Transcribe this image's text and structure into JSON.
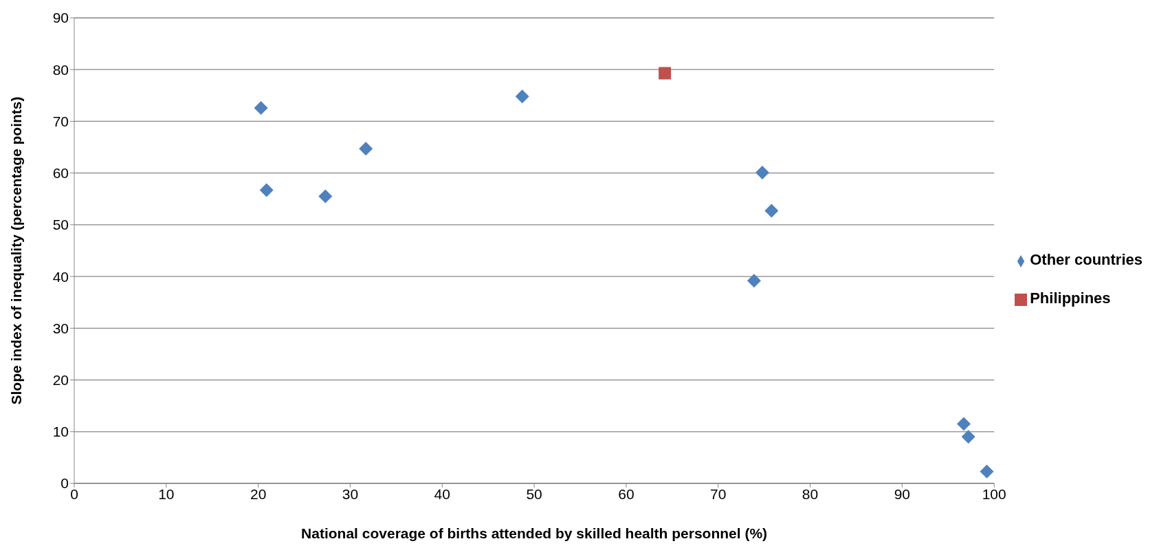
{
  "chart_data": {
    "type": "scatter",
    "xlabel": "National coverage of births attended by skilled health personnel (%)",
    "ylabel": "Slope index of  inequality (percentage points)",
    "xlim": [
      0,
      100
    ],
    "xticks": [
      0,
      10,
      20,
      30,
      40,
      50,
      60,
      70,
      80,
      90,
      100
    ],
    "ylim": [
      0,
      90
    ],
    "yticks": [
      0,
      10,
      20,
      30,
      40,
      50,
      60,
      70,
      80,
      90
    ],
    "grid": "y",
    "legend": "right",
    "series": [
      {
        "name": "Other countries",
        "color": "#4f81bd",
        "marker": "diamond",
        "x": [
          20.3,
          20.9,
          27.3,
          31.7,
          48.7,
          74.8,
          75.8,
          73.9,
          96.7,
          97.2,
          99.2
        ],
        "values": [
          72.6,
          56.7,
          55.5,
          64.7,
          74.8,
          60.1,
          52.7,
          39.2,
          11.5,
          9.0,
          2.3
        ]
      },
      {
        "name": "Philippines",
        "color": "#c0504d",
        "marker": "square",
        "x": [
          64.2
        ],
        "values": [
          79.3
        ]
      }
    ]
  }
}
